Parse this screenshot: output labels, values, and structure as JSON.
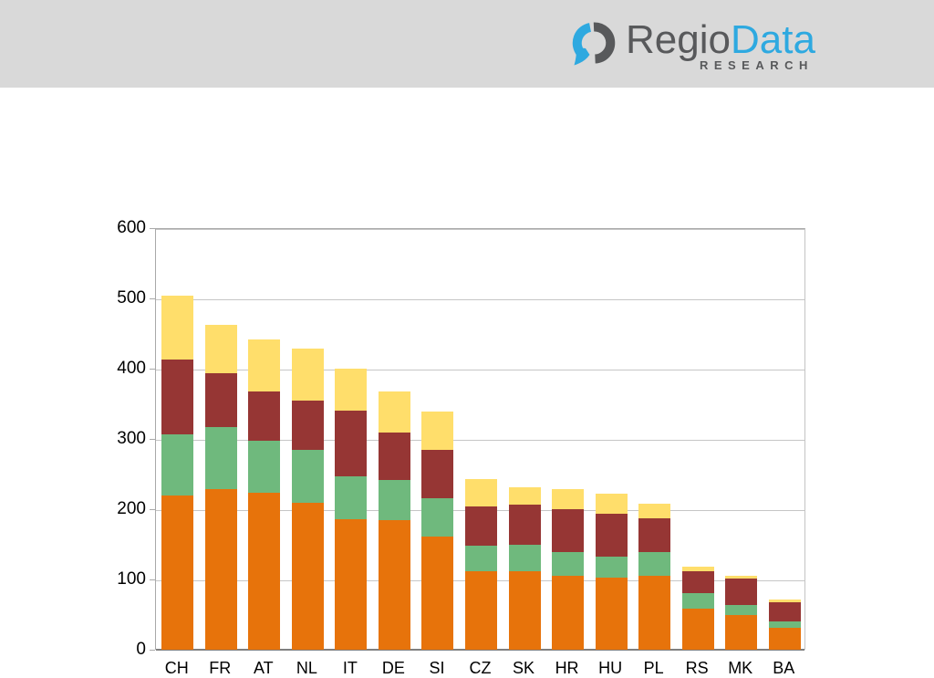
{
  "header": {
    "background_color": "#d9d9d9",
    "logo": {
      "name_part_1": "Regio",
      "name_part_2": "Data",
      "subtitle": "RESEARCH",
      "dark_color": "#58595b",
      "blue_color": "#2ea9e0"
    }
  },
  "chart_data": {
    "type": "bar",
    "stacked": true,
    "title": "",
    "xlabel": "",
    "ylabel": "",
    "ylim": [
      0,
      600
    ],
    "yticks": [
      0,
      100,
      200,
      300,
      400,
      500,
      600
    ],
    "ytick_labels": [
      "0",
      "100",
      "200",
      "300",
      "400",
      "500",
      "600"
    ],
    "grid": true,
    "legend_position": "none",
    "categories": [
      "CH",
      "FR",
      "AT",
      "NL",
      "IT",
      "DE",
      "SI",
      "CZ",
      "SK",
      "HR",
      "HU",
      "PL",
      "RS",
      "MK",
      "BA"
    ],
    "series": [
      {
        "name": "orange-segment",
        "color": "#e7730b",
        "values": [
          220,
          229,
          224,
          209,
          186,
          184,
          161,
          112,
          112,
          105,
          102,
          105,
          58,
          49,
          31
        ]
      },
      {
        "name": "green-segment",
        "color": "#6fb97d",
        "values": [
          86,
          88,
          73,
          75,
          61,
          57,
          54,
          36,
          37,
          34,
          30,
          34,
          22,
          15,
          9
        ]
      },
      {
        "name": "maroon-segment",
        "color": "#963634",
        "values": [
          107,
          76,
          71,
          71,
          93,
          68,
          69,
          56,
          57,
          61,
          61,
          48,
          32,
          37,
          28
        ]
      },
      {
        "name": "yellow-segment",
        "color": "#ffde6b",
        "values": [
          91,
          70,
          73,
          74,
          60,
          59,
          55,
          39,
          25,
          28,
          29,
          21,
          6,
          4,
          4
        ]
      }
    ],
    "totals": [
      504,
      463,
      441,
      429,
      400,
      368,
      339,
      243,
      231,
      228,
      222,
      208,
      118,
      105,
      72
    ]
  }
}
